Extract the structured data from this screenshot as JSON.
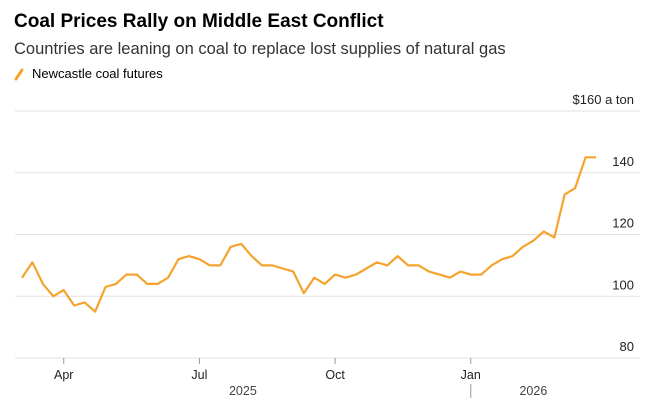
{
  "chart_data": {
    "type": "line",
    "title": "Coal Prices Rally on Middle East Conflict",
    "subtitle": "Countries are leaning on coal to replace lost supplies of natural gas",
    "categories": [
      null,
      null,
      null,
      null,
      "Apr",
      null,
      null,
      null,
      null,
      null,
      null,
      null,
      null,
      null,
      null,
      null,
      null,
      "Jul",
      null,
      null,
      null,
      null,
      null,
      null,
      null,
      null,
      null,
      null,
      null,
      null,
      "Oct",
      null,
      null,
      null,
      null,
      null,
      null,
      null,
      null,
      null,
      null,
      null,
      null,
      "Jan",
      null,
      null,
      null,
      null,
      null,
      null,
      null,
      null,
      null,
      null,
      null,
      null
    ],
    "year_labels": [
      "2025",
      "2026"
    ],
    "series": [
      {
        "name": "Newcastle coal futures",
        "color": "#f5a32d",
        "values": [
          106,
          111,
          104,
          100,
          102,
          97,
          98,
          95,
          103,
          104,
          107,
          107,
          104,
          104,
          106,
          112,
          113,
          112,
          110,
          110,
          116,
          117,
          113,
          110,
          110,
          109,
          108,
          101,
          106,
          104,
          107,
          106,
          107,
          109,
          111,
          110,
          113,
          110,
          110,
          108,
          107,
          106,
          108,
          107,
          107,
          110,
          112,
          113,
          116,
          118,
          121,
          119,
          133,
          135,
          145,
          145
        ]
      }
    ],
    "ylim": [
      80,
      160
    ],
    "yticks": [
      80,
      100,
      120,
      140,
      {
        "value": 160,
        "label": "$160 a ton"
      }
    ],
    "grid": true
  }
}
